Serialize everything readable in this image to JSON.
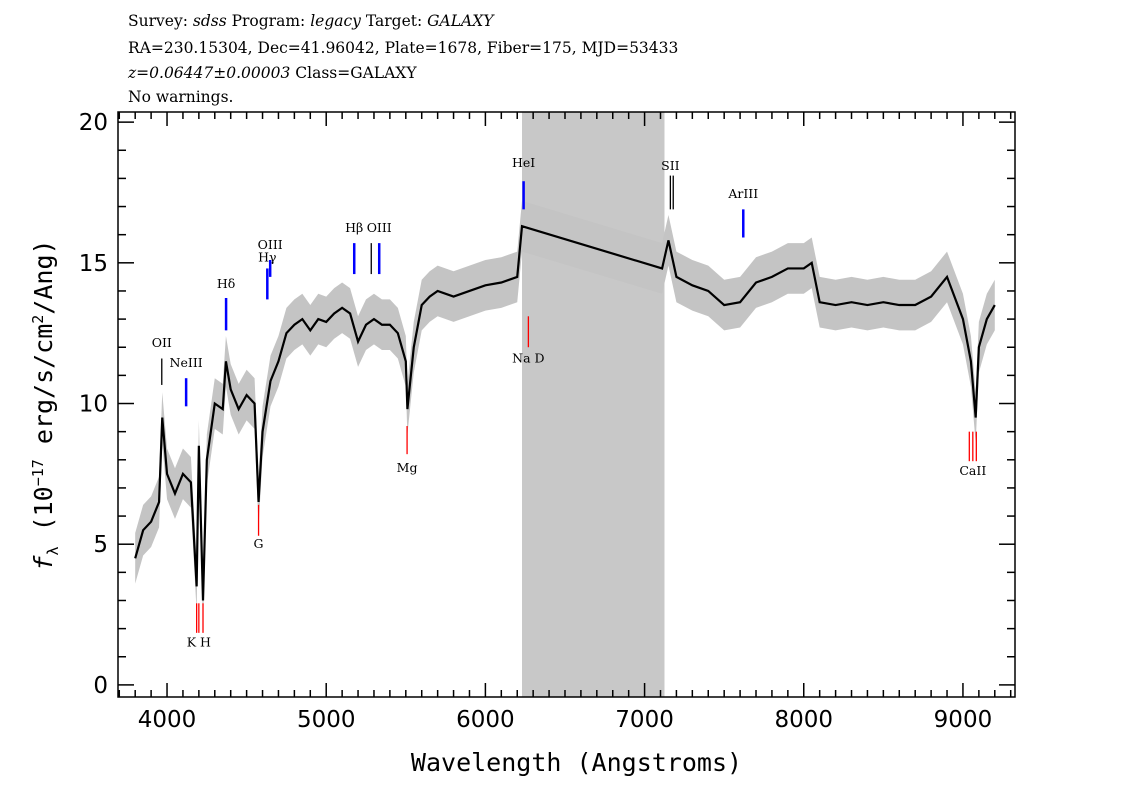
{
  "header": {
    "line1": {
      "survey_label": "Survey:",
      "survey": "sdss",
      "program_label": "Program:",
      "program": "legacy",
      "target_label": "Target:",
      "target": "GALAXY"
    },
    "line2": "RA=230.15304, Dec=41.96042, Plate=1678, Fiber=175, MJD=53433",
    "line3": {
      "redshift": "z=0.06447±0.00003",
      "class": "Class=GALAXY"
    },
    "line4": "No warnings."
  },
  "chart_data": {
    "type": "line",
    "xlabel": "Wavelength (Angstroms)",
    "ylabel": "f_λ (10^-17 erg/s/cm^2/Ang)",
    "ylabel_parts": {
      "f": "f",
      "sub": "λ",
      "pre": " (10",
      "exp": "−17",
      "mid": " erg/s/cm",
      "exp2": "2",
      "post": "/Ang)"
    },
    "xlim": [
      3692,
      9327
    ],
    "ylim": [
      -0.43,
      20.36
    ],
    "xticks": [
      4000,
      5000,
      6000,
      7000,
      8000,
      9000
    ],
    "xtick_labels": [
      "4000",
      "5000",
      "6000",
      "7000",
      "8000",
      "9000"
    ],
    "yticks": [
      0,
      5,
      10,
      15,
      20
    ],
    "ytick_labels": [
      "0",
      "5",
      "10",
      "15",
      "20"
    ],
    "grid": false,
    "masked_region": [
      6230,
      7125
    ],
    "colors": {
      "flux": "#000000",
      "error": "#c4c4c4",
      "mask": "#c8c8c8",
      "emission": "#0000ff",
      "absorption": "#ff0000",
      "sky": "#000000"
    },
    "flux_error": 0.9,
    "series": [
      {
        "x": [
          3800,
          3850,
          3900,
          3950,
          3970,
          4000,
          4050,
          4100,
          4150,
          4186,
          4200,
          4226,
          4250,
          4300,
          4350,
          4370,
          4400,
          4450,
          4500,
          4550,
          4575,
          4600,
          4650,
          4700,
          4750,
          4800,
          4850,
          4900,
          4950,
          5000,
          5050,
          5100,
          5150,
          5200,
          5250,
          5300,
          5350,
          5400,
          5450,
          5500,
          5510,
          5550,
          5600,
          5650,
          5700,
          5800,
          5900,
          6000,
          6100,
          6200,
          6230,
          7110,
          7150,
          7200,
          7300,
          7400,
          7500,
          7600,
          7700,
          7800,
          7900,
          8000,
          8050,
          8100,
          8200,
          8300,
          8400,
          8500,
          8600,
          8700,
          8800,
          8900,
          9000,
          9050,
          9080,
          9100,
          9150,
          9200
        ],
        "y": [
          4.5,
          5.5,
          5.8,
          6.5,
          9.5,
          7.5,
          6.8,
          7.5,
          7.2,
          3.5,
          8.5,
          3.0,
          8.0,
          10.0,
          9.8,
          11.5,
          10.5,
          9.8,
          10.3,
          10.0,
          6.5,
          9.0,
          10.8,
          11.5,
          12.5,
          12.8,
          13.0,
          12.6,
          13.0,
          12.9,
          13.2,
          13.4,
          13.2,
          12.2,
          12.8,
          13.0,
          12.8,
          12.8,
          12.5,
          11.5,
          9.8,
          12.0,
          13.5,
          13.8,
          14.0,
          13.8,
          14.0,
          14.2,
          14.3,
          14.5,
          16.3,
          14.8,
          15.8,
          14.5,
          14.2,
          14.0,
          13.5,
          13.6,
          14.3,
          14.5,
          14.8,
          14.8,
          15.0,
          13.6,
          13.5,
          13.6,
          13.5,
          13.6,
          13.5,
          13.5,
          13.8,
          14.5,
          13.0,
          11.5,
          9.5,
          12.0,
          13.0,
          13.5
        ]
      }
    ],
    "line_markers": [
      {
        "label": "OII",
        "wavelength": 3967,
        "kind": "sky",
        "y": [
          10.66,
          11.6
        ],
        "label_y": 12.0
      },
      {
        "label": "NeIII",
        "wavelength": 4120,
        "kind": "emission",
        "y": [
          9.9,
          10.9
        ],
        "label_y": 11.3
      },
      {
        "label": "Hδ",
        "wavelength": 4371,
        "kind": "emission",
        "y": [
          12.6,
          13.75
        ],
        "label_y": 14.1
      },
      {
        "label": "Hγ",
        "wavelength": 4630,
        "kind": "emission",
        "y": [
          13.7,
          14.8
        ],
        "label_y": 15.05
      },
      {
        "label": "OIII",
        "wavelength": 4648,
        "kind": "emission",
        "y": [
          14.5,
          15.1
        ],
        "label_y": 15.5
      },
      {
        "label": "Hβ",
        "wavelength": 5176,
        "kind": "emission",
        "y": [
          14.6,
          15.7
        ],
        "label_y": 16.1
      },
      {
        "label": "",
        "wavelength": 5283,
        "kind": "sky",
        "y": [
          14.6,
          15.7
        ],
        "label_y": 16.1
      },
      {
        "label": "OIII",
        "wavelength": 5333,
        "kind": "emission",
        "y": [
          14.6,
          15.7
        ],
        "label_y": 16.1
      },
      {
        "label": "HeI",
        "wavelength": 6240,
        "kind": "emission",
        "y": [
          16.9,
          17.9
        ],
        "label_y": 18.4
      },
      {
        "label": "Na D",
        "wavelength": 6270,
        "kind": "absorption",
        "y": [
          12.0,
          13.1
        ],
        "label_y": 11.6
      },
      {
        "label": "SII",
        "wavelength": 7162,
        "kind": "sky",
        "y": [
          16.9,
          18.1
        ],
        "label_y": 18.3
      },
      {
        "label": "",
        "wavelength": 7180,
        "kind": "sky",
        "y": [
          16.9,
          18.1
        ],
        "label_y": 18.3
      },
      {
        "label": "ArIII",
        "wavelength": 7620,
        "kind": "emission",
        "y": [
          15.9,
          16.9
        ],
        "label_y": 17.3
      },
      {
        "label": "Mg",
        "wavelength": 5508,
        "kind": "absorption",
        "y": [
          8.2,
          9.2
        ],
        "label_y": 7.7
      },
      {
        "label": "G",
        "wavelength": 4575,
        "kind": "absorption",
        "y": [
          5.3,
          6.4
        ],
        "label_y": 5.0
      },
      {
        "label": "K H",
        "wavelength": 4200,
        "kind": "absorption",
        "y": [
          1.85,
          2.9
        ],
        "label_y": 1.5
      },
      {
        "label": "",
        "wavelength": 4186,
        "kind": "absorption",
        "y": [
          1.85,
          2.9
        ],
        "label_y": 1.5
      },
      {
        "label": "",
        "wavelength": 4226,
        "kind": "absorption",
        "y": [
          1.85,
          2.9
        ],
        "label_y": 1.5
      },
      {
        "label": "CaII",
        "wavelength": 9062,
        "kind": "absorption",
        "y": [
          7.95,
          9.0
        ],
        "label_y": 7.6
      },
      {
        "label": "",
        "wavelength": 9040,
        "kind": "absorption",
        "y": [
          7.95,
          9.0
        ],
        "label_y": 7.6
      },
      {
        "label": "",
        "wavelength": 9084,
        "kind": "absorption",
        "y": [
          7.95,
          9.0
        ],
        "label_y": 7.6
      }
    ]
  }
}
